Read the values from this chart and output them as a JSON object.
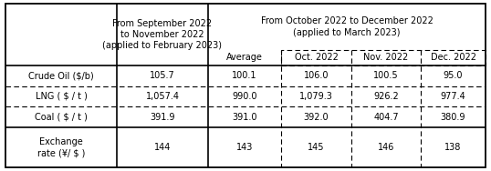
{
  "sep_nov_header": "From September 2022\nto November 2022\n(applied to February 2023)",
  "oct_dec_header_line1": "From October 2022 to December 2022",
  "oct_dec_header_line2": "(applied to March 2023)",
  "sub_headers": [
    "Average",
    "Oct. 2022",
    "Nov. 2022",
    "Dec. 2022"
  ],
  "row_labels": [
    "Crude Oil ($/b)",
    "LNG ( $ / t )",
    "Coal ( $ / t )",
    "Exchange\nrate (¥/ $ )"
  ],
  "col1_values": [
    "105.7",
    "1,057.4",
    "391.9",
    "144"
  ],
  "data": [
    [
      "100.1",
      "106.0",
      "100.5",
      "95.0"
    ],
    [
      "990.0",
      "1,079.3",
      "926.2",
      "977.4"
    ],
    [
      "391.0",
      "392.0",
      "404.7",
      "380.9"
    ],
    [
      "143",
      "145",
      "146",
      "138"
    ]
  ],
  "figwidth": 5.38,
  "figheight": 1.88,
  "dpi": 100
}
